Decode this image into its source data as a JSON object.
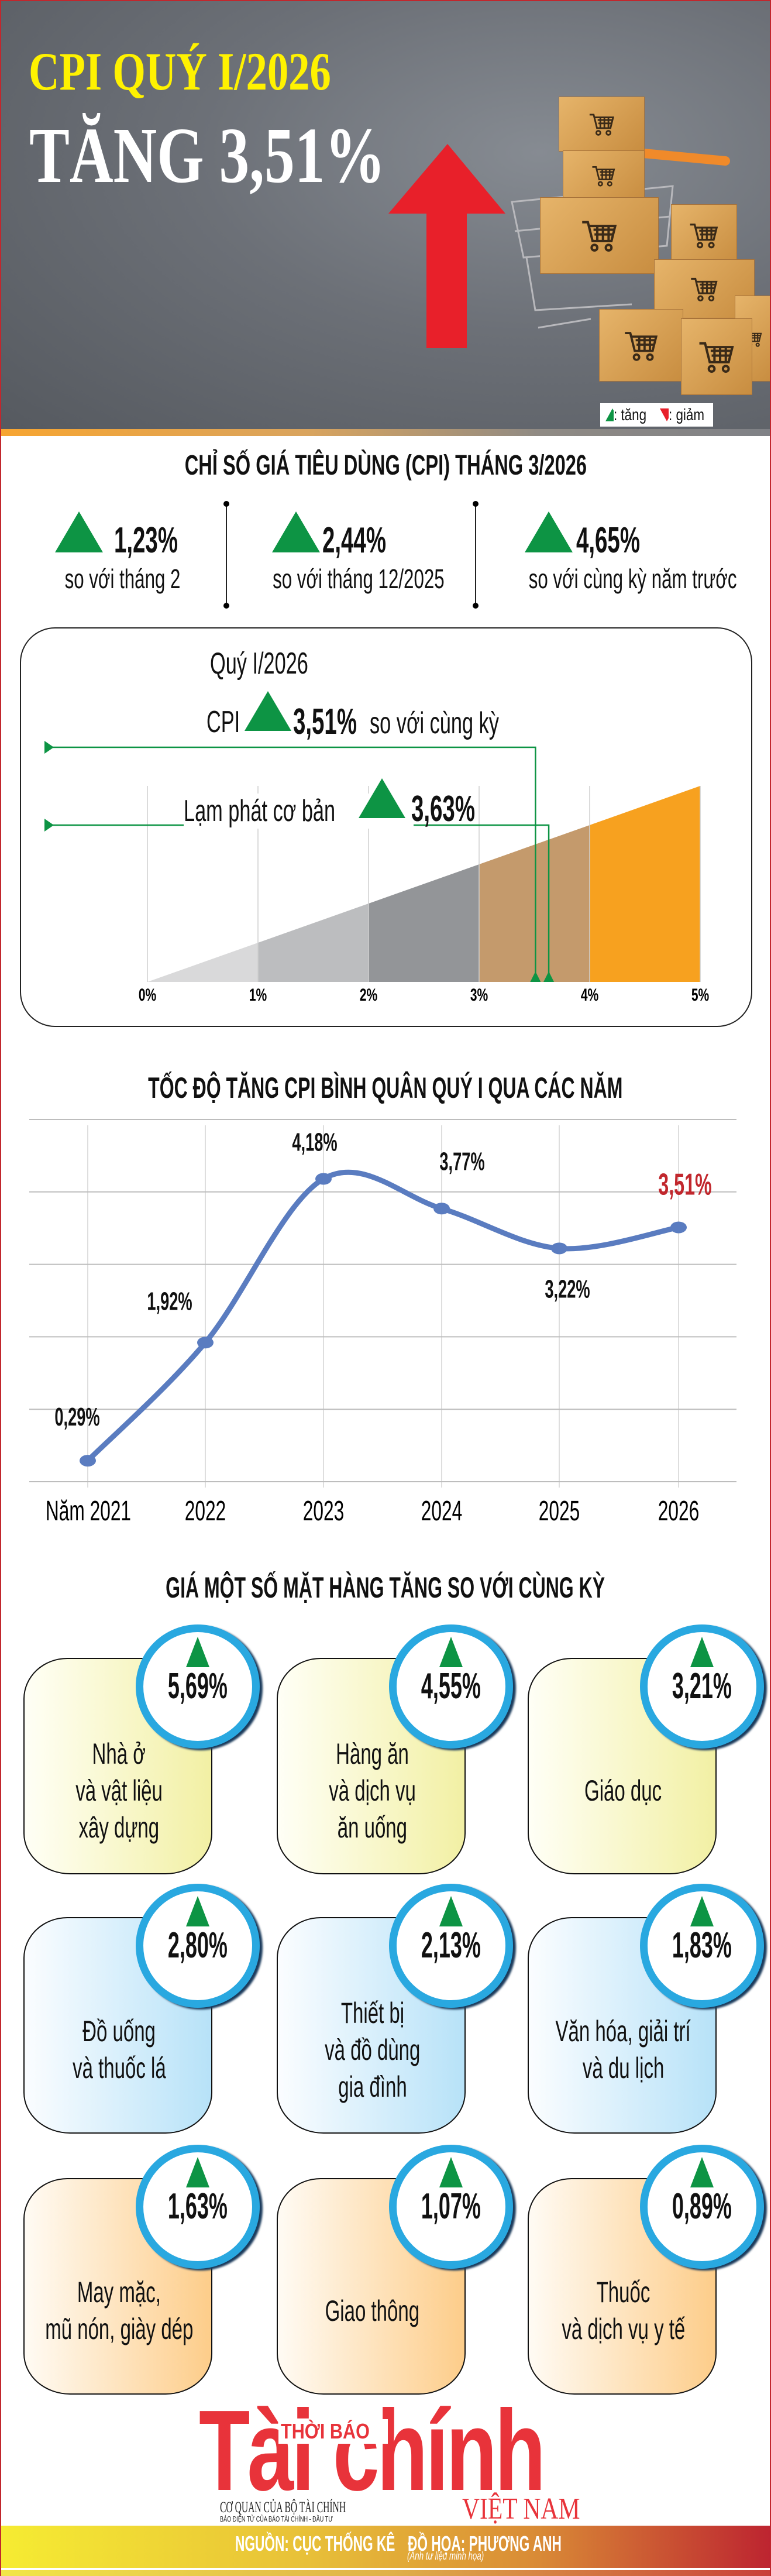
{
  "hero": {
    "title_line1": "CPI QUÝ I/2026",
    "title_line2": "TĂNG 3,51%",
    "title_color": "#fff200",
    "arrow_color": "#e8202a",
    "legend": {
      "up_label": ": tăng",
      "down_label": ": giảm",
      "up_icon": "triangle-up-green",
      "down_icon": "triangle-down-red"
    }
  },
  "monthly": {
    "title": "CHỈ SỐ GIÁ TIÊU DÙNG (CPI) THÁNG 3/2026",
    "stats": [
      {
        "value": "1,23%",
        "label": "so với tháng 2",
        "direction": "up"
      },
      {
        "value": "2,44%",
        "label": "so với tháng 12/2025",
        "direction": "up"
      },
      {
        "value": "4,65%",
        "label": "so với cùng kỳ năm trước",
        "direction": "up"
      }
    ]
  },
  "quarter": {
    "title": "Quý I/2026",
    "cpi_prefix": "CPI",
    "cpi_value": "3,51%",
    "cpi_suffix": "so với cùng kỳ",
    "core_label": "Lạm phát cơ bản",
    "core_value": "3,63%"
  },
  "chart_data": [
    {
      "type": "area",
      "xlim": [
        0,
        5
      ],
      "x_ticks": [
        "0%",
        "1%",
        "2%",
        "3%",
        "4%",
        "5%"
      ],
      "band_colors": [
        "#d9d9da",
        "#bcbdbf",
        "#939598",
        "#c49a6c",
        "#f7a11f"
      ],
      "marker_color": "#0d9444",
      "markers": [
        {
          "label": "CPI",
          "value": 3.51
        },
        {
          "label": "Lạm phát cơ bản",
          "value": 3.63
        }
      ],
      "grid": true
    },
    {
      "type": "line",
      "title": "TỐC ĐỘ TĂNG CPI BÌNH QUÂN QUÝ I QUA CÁC NĂM",
      "categories": [
        "Năm 2021",
        "2022",
        "2023",
        "2024",
        "2025",
        "2026"
      ],
      "values": [
        0.29,
        1.92,
        4.18,
        3.77,
        3.22,
        3.51
      ],
      "data_labels": [
        "0,29%",
        "1,92%",
        "4,18%",
        "3,77%",
        "3,22%",
        "3,51%"
      ],
      "ylim": [
        0,
        5
      ],
      "grid": true,
      "line_color": "#5a7cc0",
      "highlight_color": "#c1272d",
      "highlight_index": 5
    }
  ],
  "items": {
    "title": "GIÁ MỘT SỐ MẶT HÀNG TĂNG SO VỚI CÙNG KỲ",
    "cards": [
      {
        "value": "5,69%",
        "lines": [
          "Nhà ở",
          "và vật liệu",
          "xây dựng"
        ],
        "color": "yellow"
      },
      {
        "value": "4,55%",
        "lines": [
          "Hàng ăn",
          "và dịch vụ",
          "ăn uống"
        ],
        "color": "yellow"
      },
      {
        "value": "3,21%",
        "lines": [
          "Giáo dục"
        ],
        "color": "yellow"
      },
      {
        "value": "2,80%",
        "lines": [
          "Đồ uống",
          "và thuốc lá"
        ],
        "color": "blue"
      },
      {
        "value": "2,13%",
        "lines": [
          "Thiết bị",
          "và đồ dùng",
          "gia đình"
        ],
        "color": "blue"
      },
      {
        "value": "1,83%",
        "lines": [
          "Văn hóa, giải trí",
          "và du lịch"
        ],
        "color": "blue"
      },
      {
        "value": "1,63%",
        "lines": [
          "May mặc,",
          "mũ nón, giày dép"
        ],
        "color": "orange"
      },
      {
        "value": "1,07%",
        "lines": [
          "Giao thông"
        ],
        "color": "orange"
      },
      {
        "value": "0,89%",
        "lines": [
          "Thuốc",
          "và dịch vụ y tế"
        ],
        "color": "orange"
      }
    ]
  },
  "logo": {
    "top": "THỜI BÁO",
    "main": "Tài chính",
    "bottom": "VIỆT NAM",
    "sub1": "CƠ QUAN CỦA BỘ TÀI CHÍNH",
    "sub2": "BÁO ĐIỆN TỬ CỦA BÁO TÀI CHÍNH - ĐẦU TƯ",
    "color": "#e8333a"
  },
  "footer": {
    "source": "NGUỒN: CỤC THỐNG KÊ",
    "design": "ĐỒ HỌA: PHƯƠNG ANH",
    "photo_note": "(Ảnh tư liệu minh họa)"
  }
}
